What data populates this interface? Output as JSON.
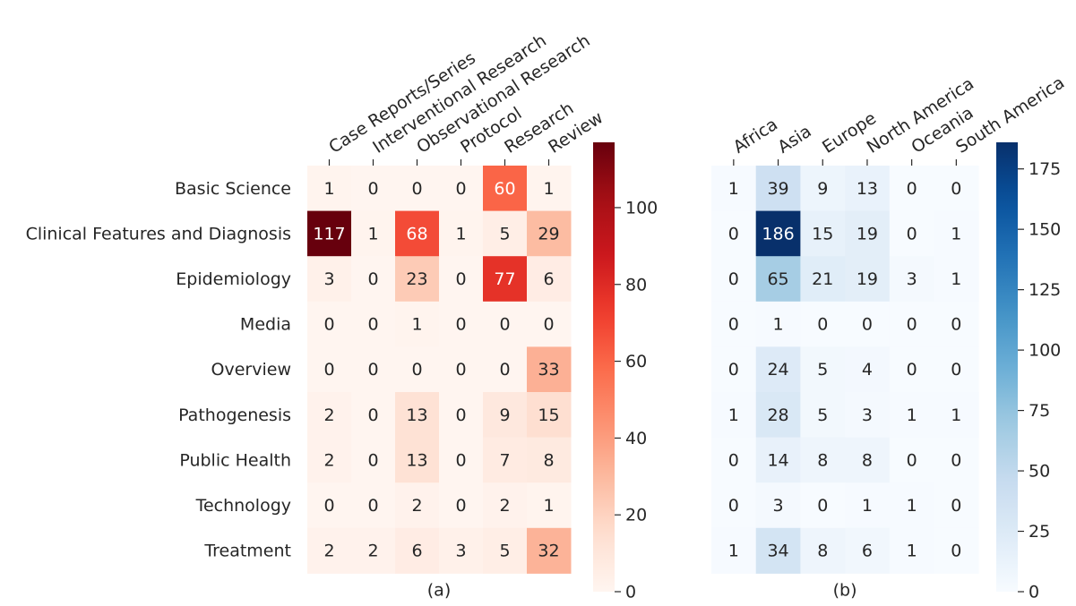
{
  "chart_data": [
    {
      "type": "heatmap",
      "caption": "(a)",
      "colormap": "reds",
      "columns": [
        "Case Reports/Series",
        "Interventional Research",
        "Observational Research",
        "Protocol",
        "Research",
        "Review"
      ],
      "rows": [
        "Basic Science",
        "Clinical Features and Diagnosis",
        "Epidemiology",
        "Media",
        "Overview",
        "Pathogenesis",
        "Public Health",
        "Technology",
        "Treatment"
      ],
      "values": [
        [
          1,
          0,
          0,
          0,
          60,
          1
        ],
        [
          117,
          1,
          68,
          1,
          5,
          29
        ],
        [
          3,
          0,
          23,
          0,
          77,
          6
        ],
        [
          0,
          0,
          1,
          0,
          0,
          0
        ],
        [
          0,
          0,
          0,
          0,
          0,
          33
        ],
        [
          2,
          0,
          13,
          0,
          9,
          15
        ],
        [
          2,
          0,
          13,
          0,
          7,
          8
        ],
        [
          0,
          0,
          2,
          0,
          2,
          1
        ],
        [
          2,
          2,
          6,
          3,
          5,
          32
        ]
      ],
      "clim": [
        0,
        117
      ],
      "cticks": [
        0,
        20,
        40,
        60,
        80,
        100
      ]
    },
    {
      "type": "heatmap",
      "caption": "(b)",
      "colormap": "blues",
      "columns": [
        "Africa",
        "Asia",
        "Europe",
        "North America",
        "Oceania",
        "South America"
      ],
      "values": [
        [
          1,
          39,
          9,
          13,
          0,
          0
        ],
        [
          0,
          186,
          15,
          19,
          0,
          1
        ],
        [
          0,
          65,
          21,
          19,
          3,
          1
        ],
        [
          0,
          1,
          0,
          0,
          0,
          0
        ],
        [
          0,
          24,
          5,
          4,
          0,
          0
        ],
        [
          1,
          28,
          5,
          3,
          1,
          1
        ],
        [
          0,
          14,
          8,
          8,
          0,
          0
        ],
        [
          0,
          3,
          0,
          1,
          1,
          0
        ],
        [
          1,
          34,
          8,
          6,
          1,
          0
        ]
      ],
      "clim": [
        0,
        186
      ],
      "cticks": [
        0,
        25,
        50,
        75,
        100,
        125,
        150,
        175
      ]
    }
  ]
}
